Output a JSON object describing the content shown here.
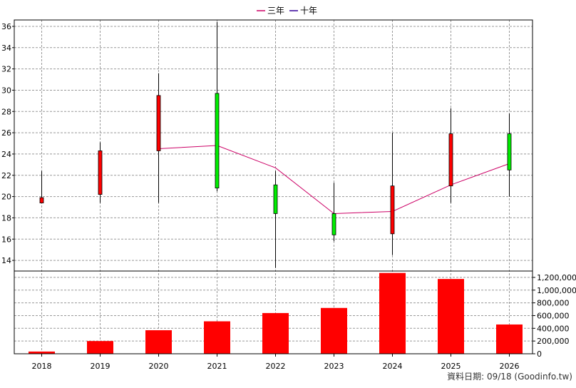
{
  "chart_data": {
    "type": "candlestick",
    "legend": [
      {
        "name": "三年",
        "color": "#cc0066"
      },
      {
        "name": "十年",
        "color": "#330099"
      }
    ],
    "legend_position": "top-center",
    "categories": [
      "2018",
      "2019",
      "2020",
      "2021",
      "2022",
      "2023",
      "2024",
      "2025",
      "2026"
    ],
    "price_axis": {
      "ylim": [
        13,
        36.6
      ],
      "ticks": [
        "14",
        "16",
        "18",
        "20",
        "22",
        "24",
        "26",
        "28",
        "30",
        "32",
        "34",
        "36"
      ],
      "side": "left"
    },
    "volume_axis": {
      "ylim": [
        0,
        1300000
      ],
      "ticks": [
        "0",
        "200,000",
        "400,000",
        "600,000",
        "800,000",
        "1,000,000",
        "1,200,000"
      ],
      "side": "right"
    },
    "grid": true,
    "candles": [
      {
        "x": "2018",
        "open": 19.9,
        "high": 22.4,
        "low": 19.4,
        "close": 19.4,
        "color": "#ff0000"
      },
      {
        "x": "2019",
        "open": 24.3,
        "high": 25.1,
        "low": 19.4,
        "close": 20.2,
        "color": "#ff0000"
      },
      {
        "x": "2020",
        "open": 29.5,
        "high": 31.6,
        "low": 19.4,
        "close": 24.3,
        "color": "#ff0000"
      },
      {
        "x": "2021",
        "open": 20.8,
        "high": 36.4,
        "low": 20.5,
        "close": 29.7,
        "color": "#00ee00"
      },
      {
        "x": "2022",
        "open": 18.4,
        "high": 22.4,
        "low": 13.3,
        "close": 21.1,
        "color": "#00ee00"
      },
      {
        "x": "2023",
        "open": 16.4,
        "high": 21.3,
        "low": 15.8,
        "close": 18.4,
        "color": "#00ee00"
      },
      {
        "x": "2024",
        "open": 21.0,
        "high": 26.0,
        "low": 14.5,
        "close": 16.5,
        "color": "#ff0000"
      },
      {
        "x": "2025",
        "open": 25.9,
        "high": 28.3,
        "low": 19.4,
        "close": 21.0,
        "color": "#ff0000"
      },
      {
        "x": "2026",
        "open": 22.5,
        "high": 27.8,
        "low": 20.0,
        "close": 25.9,
        "color": "#00ee00"
      }
    ],
    "series": [
      {
        "name": "三年",
        "x": [
          "2020",
          "2021",
          "2022",
          "2023",
          "2024",
          "2025",
          "2026"
        ],
        "values": [
          24.5,
          24.8,
          22.7,
          18.4,
          18.6,
          21.1,
          23.1
        ]
      }
    ],
    "volume": {
      "color": "#ff0000",
      "values": [
        35000,
        200000,
        370000,
        510000,
        640000,
        720000,
        1270000,
        1175000,
        460000
      ]
    },
    "footnote": "資料日期: 09/18  (Goodinfo.tw)"
  }
}
